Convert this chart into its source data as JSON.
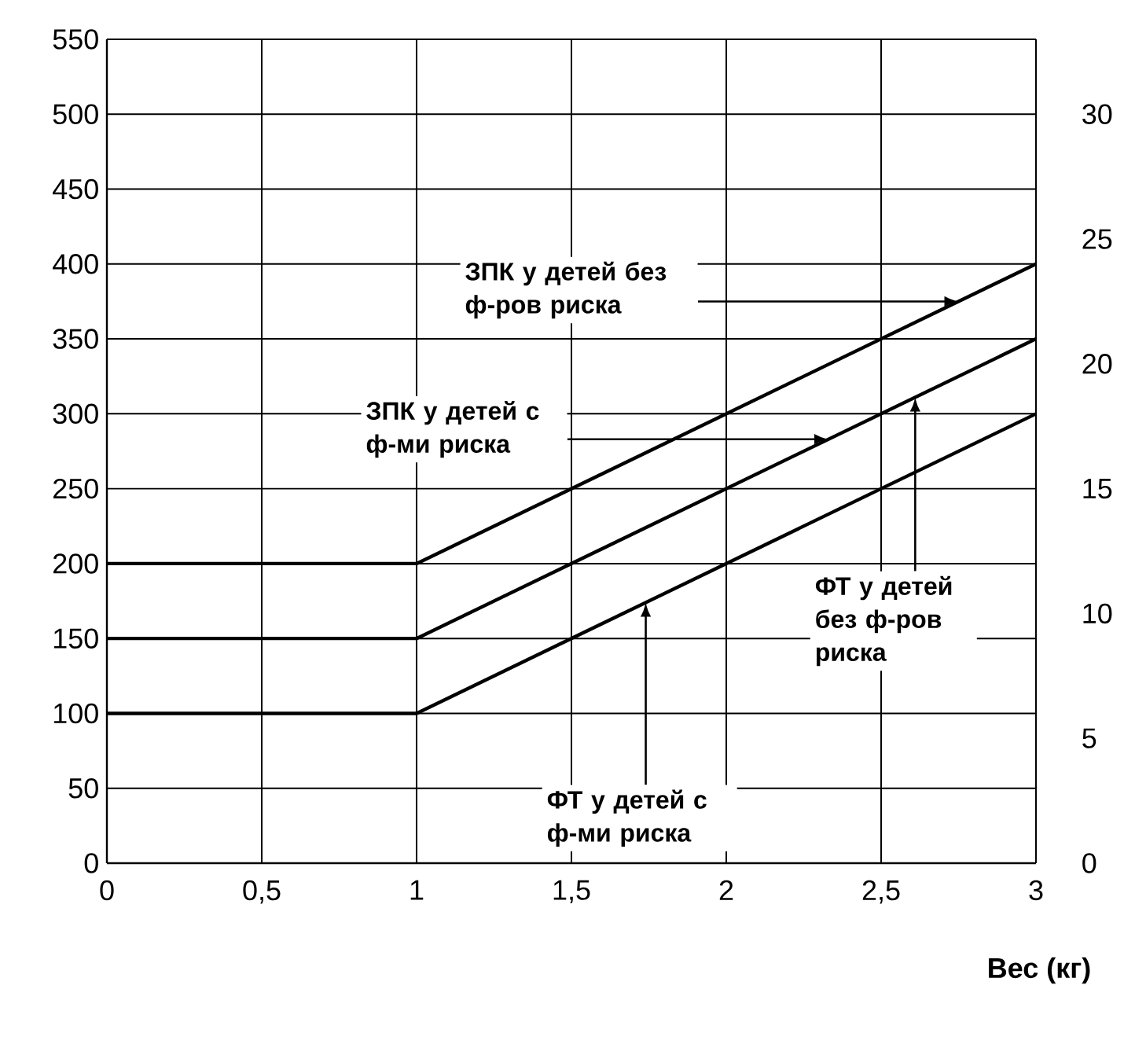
{
  "chart_data": {
    "type": "line",
    "xlabel": "Вес (кг)",
    "series": [
      {
        "color": "#000000",
        "x": [
          0,
          1,
          3
        ],
        "values": [
          200,
          200,
          400
        ]
      },
      {
        "color": "#000000",
        "x": [
          0,
          1,
          3
        ],
        "values": [
          150,
          150,
          350
        ]
      },
      {
        "color": "#000000",
        "x": [
          0,
          1,
          3
        ],
        "values": [
          100,
          100,
          300
        ]
      }
    ],
    "xlim": [
      0,
      3
    ],
    "ylim": [
      0,
      550
    ],
    "xticks": [
      0,
      {
        "value": 0.5,
        "label": "0,5"
      },
      1,
      {
        "value": 1.5,
        "label": "1,5"
      },
      2,
      {
        "value": 2.5,
        "label": "2,5"
      },
      3
    ],
    "yticks": [
      0,
      50,
      100,
      150,
      200,
      250,
      300,
      350,
      400,
      450,
      500,
      550
    ],
    "y2lim": [
      0,
      33
    ],
    "y2ticks": [
      0,
      5,
      10,
      15,
      20,
      25,
      30
    ],
    "grid": true,
    "marker": "none",
    "line_style": "solid",
    "legend": false,
    "annotations": [
      {
        "text": "ЗПК у детей без ф-ров риска",
        "x": 2.75,
        "y": 375
      },
      {
        "text": "ЗПК у детей с ф-ми риска",
        "x": 2.33,
        "y": 283
      },
      {
        "text": "ФТ у детей без ф-ров риска",
        "x": 2.61,
        "y": 311
      },
      {
        "text": "ФТ у детей с ф-ми риска",
        "x": 1.74,
        "y": 174
      }
    ]
  }
}
